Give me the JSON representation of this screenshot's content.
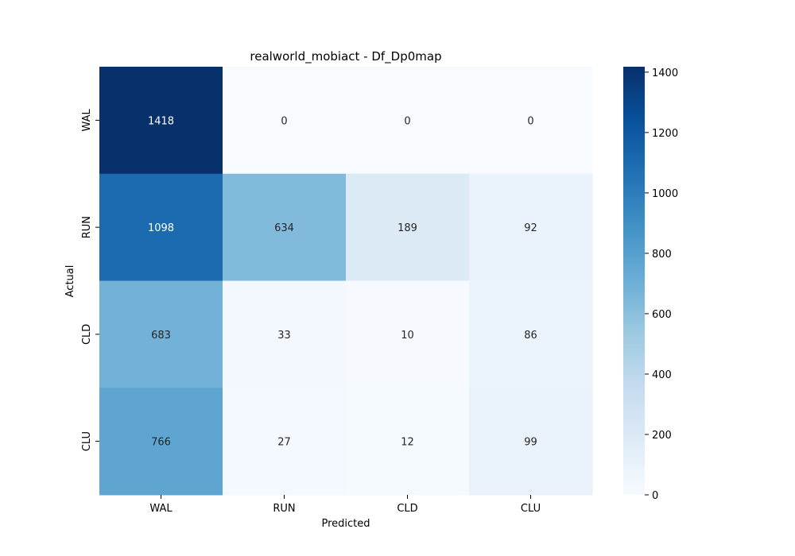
{
  "chart_data": {
    "type": "heatmap",
    "title": "realworld_mobiact - Df_Dp0map",
    "xlabel": "Predicted",
    "ylabel": "Actual",
    "x_categories": [
      "WAL",
      "RUN",
      "CLD",
      "CLU"
    ],
    "y_categories": [
      "WAL",
      "RUN",
      "CLD",
      "CLU"
    ],
    "values": [
      [
        1418,
        0,
        0,
        0
      ],
      [
        1098,
        634,
        189,
        92
      ],
      [
        683,
        33,
        10,
        86
      ],
      [
        766,
        27,
        12,
        99
      ]
    ],
    "colorbar": {
      "colormap": "Blues",
      "vmin": 0,
      "vmax": 1418,
      "ticks": [
        0,
        200,
        400,
        600,
        800,
        1000,
        1200,
        1400
      ]
    }
  }
}
